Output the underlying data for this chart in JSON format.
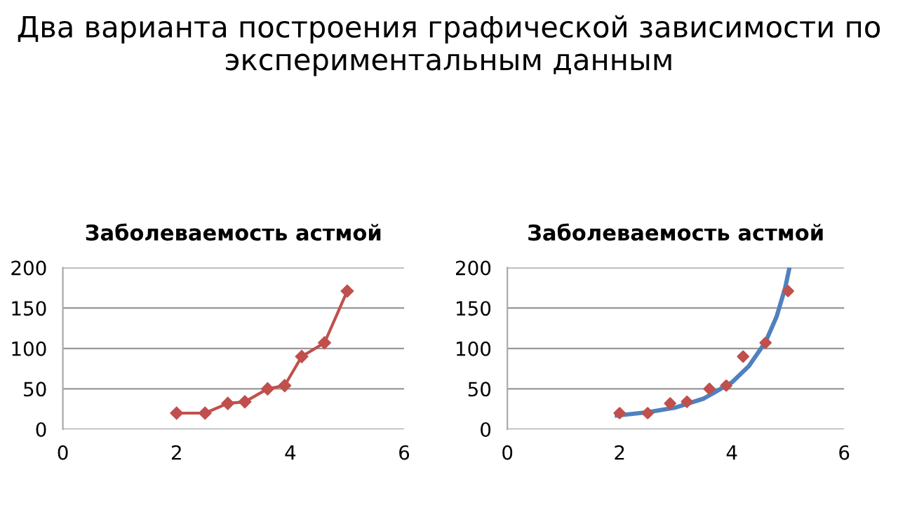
{
  "chart_data": [
    {
      "type": "line",
      "title": "Заболеваемость астмой",
      "annotations": [
        "Два варианта построения графической зависимости по экспериментальным данным"
      ],
      "x": [
        2,
        2.5,
        2.9,
        3.2,
        3.6,
        3.9,
        4.2,
        4.6,
        5.0
      ],
      "series": [
        {
          "color": "#c0504d",
          "values": [
            20,
            20,
            32,
            34,
            50,
            54,
            90,
            107,
            171
          ]
        }
      ],
      "xlim": [
        0,
        6
      ],
      "xticks": [
        0,
        2,
        4,
        6
      ],
      "ylim": [
        0,
        200
      ],
      "yticks": [
        0,
        50,
        100,
        150,
        200
      ],
      "grid": "y",
      "marker": "diamond",
      "line_style": "solid"
    },
    {
      "type": "scatter",
      "title": "Заболеваемость астмой",
      "x": [
        2,
        2.5,
        2.9,
        3.2,
        3.6,
        3.9,
        4.2,
        4.6,
        5.0
      ],
      "series": [
        {
          "color": "#c0504d",
          "values": [
            20,
            20,
            32,
            34,
            50,
            54,
            90,
            107,
            171
          ]
        },
        {
          "type": "line",
          "marker": "none",
          "color": "#4f81bd",
          "x": [
            1.95,
            2.5,
            3.0,
            3.5,
            4.0,
            4.3,
            4.6,
            4.8,
            4.95,
            5.02
          ],
          "values": [
            17,
            21,
            27,
            38,
            58,
            78,
            108,
            140,
            175,
            198
          ]
        }
      ],
      "xlim": [
        0,
        6
      ],
      "xticks": [
        0,
        2,
        4,
        6
      ],
      "ylim": [
        0,
        200
      ],
      "yticks": [
        0,
        50,
        100,
        150,
        200
      ],
      "grid": "y",
      "marker": "diamond"
    }
  ]
}
